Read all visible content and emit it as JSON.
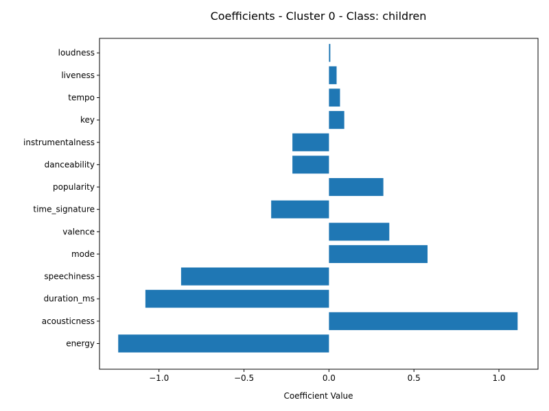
{
  "chart_data": {
    "type": "bar",
    "orientation": "horizontal",
    "title": "Coefficients - Cluster 0 - Class: children",
    "xlabel": "Coefficient Value",
    "ylabel": "",
    "categories": [
      "energy",
      "acousticness",
      "duration_ms",
      "speechiness",
      "mode",
      "valence",
      "time_signature",
      "popularity",
      "danceability",
      "instrumentalness",
      "key",
      "tempo",
      "liveness",
      "loudness"
    ],
    "values": [
      -1.24,
      1.11,
      -1.08,
      -0.87,
      0.58,
      0.355,
      -0.34,
      0.32,
      -0.215,
      -0.215,
      0.09,
      0.065,
      0.045,
      0.008
    ],
    "xlim": [
      -1.35,
      1.23
    ],
    "xticks": [
      -1.0,
      -0.5,
      0.0,
      0.5,
      1.0
    ],
    "xtick_labels": [
      "−1.0",
      "−0.5",
      "0.0",
      "0.5",
      "1.0"
    ],
    "bar_color": "#1f77b4",
    "grid": false,
    "legend": "none"
  }
}
